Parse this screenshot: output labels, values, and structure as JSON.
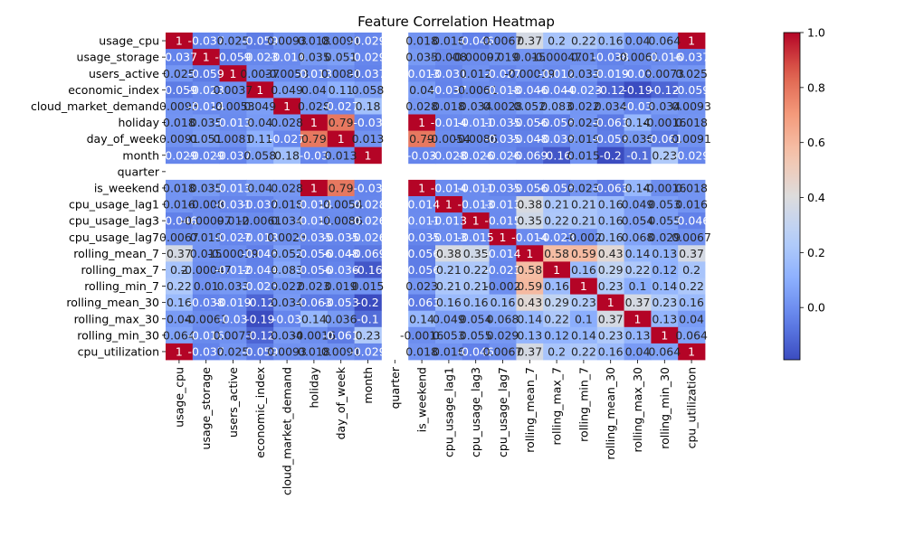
{
  "chart_data": {
    "type": "heatmap",
    "title": "Feature Correlation Heatmap",
    "colormap": "coolwarm",
    "colorbar": {
      "min": -0.19,
      "max": 1.0,
      "ticks": [
        0.0,
        0.2,
        0.4,
        0.6,
        0.8,
        1.0
      ]
    },
    "labels": [
      "usage_cpu",
      "usage_storage",
      "users_active",
      "economic_index",
      "cloud_market_demand",
      "holiday",
      "day_of_week",
      "month",
      "quarter",
      "is_weekend",
      "cpu_usage_lag1",
      "cpu_usage_lag3",
      "cpu_usage_lag7",
      "rolling_mean_7",
      "rolling_max_7",
      "rolling_min_7",
      "rolling_mean_30",
      "rolling_max_30",
      "rolling_min_30",
      "cpu_utilization"
    ],
    "matrix": [
      [
        1,
        -0.037,
        0.025,
        -0.059,
        0.0093,
        0.018,
        0.0091,
        -0.029,
        null,
        0.018,
        0.016,
        -0.046,
        0.0067,
        0.37,
        0.2,
        0.22,
        0.16,
        0.04,
        0.064,
        1
      ],
      [
        -0.037,
        1,
        -0.059,
        -0.023,
        -0.014,
        0.035,
        0.051,
        -0.029,
        null,
        0.035,
        -0.008,
        -0.00097,
        0.019,
        0.015,
        -0.00047,
        0.01,
        -0.038,
        -0.0061,
        -0.016,
        -0.037
      ],
      [
        0.025,
        -0.059,
        1,
        0.0037,
        -0.0053,
        -0.013,
        0.0081,
        -0.037,
        null,
        -0.013,
        -0.031,
        0.012,
        -0.027,
        -0.00019,
        -0.012,
        0.033,
        -0.019,
        -0.03,
        0.0073,
        0.025
      ],
      [
        -0.059,
        -0.023,
        0.0037,
        1,
        0.049,
        0.04,
        0.11,
        0.058,
        null,
        0.04,
        -0.037,
        -0.0061,
        -0.018,
        -0.046,
        -0.044,
        -0.023,
        -0.12,
        -0.19,
        -0.12,
        -0.059
      ],
      [
        0.0093,
        -0.014,
        -0.0053,
        0.049,
        1,
        0.028,
        -0.027,
        0.18,
        null,
        0.028,
        0.018,
        0.034,
        0.0028,
        0.052,
        0.083,
        0.022,
        0.034,
        -0.03,
        0.034,
        0.0093
      ],
      [
        0.018,
        0.035,
        -0.013,
        0.04,
        0.028,
        1,
        0.79,
        -0.03,
        null,
        1,
        -0.014,
        -0.011,
        -0.035,
        -0.056,
        -0.056,
        0.023,
        -0.063,
        0.14,
        -0.0016,
        0.018
      ],
      [
        0.0091,
        0.051,
        0.0081,
        0.11,
        -0.027,
        0.79,
        1,
        0.013,
        null,
        0.79,
        -0.0054,
        -0.0086,
        -0.035,
        -0.048,
        -0.036,
        0.019,
        -0.053,
        0.036,
        -0.061,
        0.0091
      ],
      [
        -0.029,
        -0.029,
        -0.037,
        0.058,
        0.18,
        -0.03,
        0.013,
        1,
        null,
        -0.03,
        -0.028,
        -0.026,
        -0.026,
        -0.069,
        -0.16,
        0.015,
        -0.2,
        -0.1,
        0.23,
        -0.029
      ],
      [
        null,
        null,
        null,
        null,
        null,
        null,
        null,
        null,
        null,
        null,
        null,
        null,
        null,
        null,
        null,
        null,
        null,
        null,
        null,
        null
      ],
      [
        0.018,
        0.035,
        -0.013,
        0.04,
        0.028,
        1,
        0.79,
        -0.03,
        null,
        1,
        -0.014,
        -0.011,
        -0.035,
        -0.056,
        -0.056,
        0.023,
        -0.063,
        0.14,
        -0.0016,
        0.018
      ],
      [
        0.016,
        -0.008,
        -0.031,
        -0.037,
        0.018,
        -0.014,
        -0.0054,
        -0.028,
        null,
        -0.014,
        1,
        -0.013,
        -0.013,
        0.38,
        0.21,
        0.21,
        0.16,
        0.049,
        0.053,
        0.016
      ],
      [
        -0.046,
        -0.00097,
        0.012,
        -0.0061,
        0.034,
        -0.011,
        -0.0086,
        -0.026,
        null,
        -0.011,
        -0.013,
        1,
        -0.015,
        0.35,
        0.22,
        0.21,
        0.16,
        0.054,
        0.055,
        -0.046
      ],
      [
        0.0067,
        0.019,
        -0.027,
        -0.018,
        0.0028,
        -0.035,
        -0.035,
        -0.026,
        null,
        -0.035,
        -0.013,
        -0.015,
        1,
        -0.014,
        -0.023,
        -0.002,
        0.16,
        0.068,
        0.029,
        0.0067
      ],
      [
        0.37,
        0.015,
        -0.00019,
        -0.046,
        0.052,
        -0.056,
        -0.048,
        -0.069,
        null,
        -0.056,
        0.38,
        0.35,
        -0.014,
        1,
        0.58,
        0.59,
        0.43,
        0.14,
        0.13,
        0.37
      ],
      [
        0.2,
        -0.00047,
        -0.012,
        -0.044,
        0.083,
        -0.056,
        -0.036,
        -0.16,
        null,
        -0.056,
        0.21,
        0.22,
        -0.023,
        0.58,
        1,
        0.16,
        0.29,
        0.22,
        0.12,
        0.2
      ],
      [
        0.22,
        0.01,
        0.033,
        -0.023,
        0.022,
        0.023,
        0.019,
        0.015,
        null,
        0.023,
        0.21,
        0.21,
        -0.002,
        0.59,
        0.16,
        1,
        0.23,
        0.1,
        0.14,
        0.22
      ],
      [
        0.16,
        -0.038,
        -0.019,
        -0.12,
        0.034,
        -0.063,
        -0.053,
        -0.2,
        null,
        -0.063,
        0.16,
        0.16,
        0.16,
        0.43,
        0.29,
        0.23,
        1,
        0.37,
        0.23,
        0.16
      ],
      [
        0.04,
        -0.0061,
        -0.03,
        -0.19,
        -0.03,
        0.14,
        0.036,
        -0.1,
        null,
        0.14,
        0.049,
        0.054,
        0.068,
        0.14,
        0.22,
        0.1,
        0.37,
        1,
        0.13,
        0.04
      ],
      [
        0.064,
        -0.016,
        0.0073,
        -0.12,
        0.034,
        -0.0016,
        -0.061,
        0.23,
        null,
        -0.0016,
        0.053,
        0.055,
        0.029,
        0.13,
        0.12,
        0.14,
        0.23,
        0.13,
        1,
        0.064
      ],
      [
        1,
        -0.037,
        0.025,
        -0.059,
        0.0093,
        0.018,
        0.0091,
        -0.029,
        null,
        0.018,
        0.016,
        -0.046,
        0.0067,
        0.37,
        0.2,
        0.22,
        0.16,
        0.04,
        0.064,
        1
      ]
    ],
    "annotations": [
      [
        "1",
        "-0.037",
        "0.025",
        "-0.059",
        "0.0093",
        "0.018",
        "0.0091",
        "-0.029",
        "",
        "0.018",
        "0.016",
        "-0.046",
        "0.0067",
        "0.37",
        "0.2",
        "0.22",
        "0.16",
        "0.04",
        "0.064",
        "1"
      ],
      [
        "-0.037",
        "1",
        "-0.059",
        "-0.023",
        "-0.014",
        "0.035",
        "0.051",
        "-0.029",
        "",
        "0.035",
        "-0.008",
        "-0.00097",
        "0.019",
        "0.015",
        "-0.00047",
        "0.01",
        "-0.038",
        "-0.0061",
        "-0.016",
        "-0.037"
      ],
      [
        "0.025",
        "-0.059",
        "1",
        "0.0037",
        "-0.0053",
        "-0.013",
        "0.0081",
        "-0.037",
        "",
        "-0.013",
        "-0.031",
        "0.012",
        "-0.027",
        "-0.00019",
        "-0.012",
        "0.033",
        "-0.019",
        "-0.03",
        "0.0073",
        "0.025"
      ],
      [
        "-0.059",
        "-0.023",
        "0.0037",
        "1",
        "0.049",
        "0.04",
        "0.11",
        "0.058",
        "",
        "0.04",
        "-0.037",
        "-0.0061",
        "-0.018",
        "-0.046",
        "-0.044",
        "-0.023",
        "-0.12",
        "-0.19",
        "-0.12",
        "-0.059"
      ],
      [
        "0.0093",
        "-0.014",
        "-0.0053",
        "0.049",
        "1",
        "0.028",
        "-0.027",
        "0.18",
        "",
        "0.028",
        "0.018",
        "0.034",
        "0.0028",
        "0.052",
        "0.083",
        "0.022",
        "0.034",
        "-0.03",
        "0.034",
        "0.0093"
      ],
      [
        "0.018",
        "0.035",
        "-0.013",
        "0.04",
        "0.028",
        "1",
        "0.79",
        "-0.03",
        "",
        "1",
        "-0.014",
        "-0.011",
        "-0.035",
        "-0.056",
        "-0.056",
        "0.023",
        "-0.063",
        "0.14",
        "-0.0016",
        "0.018"
      ],
      [
        "0.0091",
        "0.051",
        "0.0081",
        "0.11",
        "-0.027",
        "0.79",
        "1",
        "0.013",
        "",
        "0.79",
        "-0.0054",
        "-0.0086",
        "-0.035",
        "-0.048",
        "-0.036",
        "0.019",
        "-0.053",
        "0.036",
        "-0.061",
        "0.0091"
      ],
      [
        "-0.029",
        "-0.029",
        "-0.037",
        "0.058",
        "0.18",
        "-0.03",
        "0.013",
        "1",
        "",
        "-0.03",
        "-0.028",
        "-0.026",
        "-0.026",
        "-0.069",
        "-0.16",
        "0.015",
        "-0.2",
        "-0.1",
        "0.23",
        "-0.029"
      ],
      [
        "",
        "",
        "",
        "",
        "",
        "",
        "",
        "",
        "",
        "",
        "",
        "",
        "",
        "",
        "",
        "",
        "",
        "",
        "",
        ""
      ],
      [
        "0.018",
        "0.035",
        "-0.013",
        "0.04",
        "0.028",
        "1",
        "0.79",
        "-0.03",
        "",
        "1",
        "-0.014",
        "-0.011",
        "-0.035",
        "-0.056",
        "-0.056",
        "0.023",
        "-0.063",
        "0.14",
        "-0.0016",
        "0.018"
      ],
      [
        "0.016",
        "-0.008",
        "-0.031",
        "-0.037",
        "0.018",
        "-0.014",
        "-0.0054",
        "-0.028",
        "",
        "-0.014",
        "1",
        "-0.013",
        "-0.013",
        "0.38",
        "0.21",
        "0.21",
        "0.16",
        "0.049",
        "0.053",
        "0.016"
      ],
      [
        "-0.046",
        "-0.00097",
        "0.012",
        "-0.0061",
        "0.034",
        "-0.011",
        "-0.0086",
        "-0.026",
        "",
        "-0.011",
        "-0.013",
        "1",
        "-0.015",
        "0.35",
        "0.22",
        "0.21",
        "0.16",
        "0.054",
        "0.055",
        "-0.046"
      ],
      [
        "0.0067",
        "0.019",
        "-0.027",
        "-0.018",
        "0.0028",
        "-0.035",
        "-0.035",
        "-0.026",
        "",
        "-0.035",
        "-0.013",
        "-0.015",
        "1",
        "-0.014",
        "-0.023",
        "-0.002",
        "0.16",
        "0.068",
        "0.029",
        "0.0067"
      ],
      [
        "0.37",
        "0.015",
        "-0.00019",
        "-0.046",
        "0.052",
        "-0.056",
        "-0.048",
        "-0.069",
        "",
        "-0.056",
        "0.38",
        "0.35",
        "-0.014",
        "1",
        "0.58",
        "0.59",
        "0.43",
        "0.14",
        "0.13",
        "0.37"
      ],
      [
        "0.2",
        "-0.00047",
        "-0.012",
        "-0.044",
        "0.083",
        "-0.056",
        "-0.036",
        "-0.16",
        "",
        "-0.056",
        "0.21",
        "0.22",
        "-0.023",
        "0.58",
        "1",
        "0.16",
        "0.29",
        "0.22",
        "0.12",
        "0.2"
      ],
      [
        "0.22",
        "0.01",
        "0.033",
        "-0.023",
        "0.022",
        "0.023",
        "0.019",
        "0.015",
        "",
        "0.023",
        "0.21",
        "0.21",
        "-0.002",
        "0.59",
        "0.16",
        "1",
        "0.23",
        "0.1",
        "0.14",
        "0.22"
      ],
      [
        "0.16",
        "-0.038",
        "-0.019",
        "-0.12",
        "0.034",
        "-0.063",
        "-0.053",
        "-0.2",
        "",
        "-0.063",
        "0.16",
        "0.16",
        "0.16",
        "0.43",
        "0.29",
        "0.23",
        "1",
        "0.37",
        "0.23",
        "0.16"
      ],
      [
        "0.04",
        "-0.0061",
        "-0.03",
        "-0.19",
        "-0.03",
        "0.14",
        "0.036",
        "-0.1",
        "",
        "0.14",
        "0.049",
        "0.054",
        "0.068",
        "0.14",
        "0.22",
        "0.1",
        "0.37",
        "1",
        "0.13",
        "0.04"
      ],
      [
        "0.064",
        "-0.016",
        "0.0073",
        "-0.12",
        "0.034",
        "-0.0016",
        "-0.061",
        "0.23",
        "",
        "-0.0016",
        "0.053",
        "0.055",
        "0.029",
        "0.13",
        "0.12",
        "0.14",
        "0.23",
        "0.13",
        "1",
        "0.064"
      ],
      [
        "1",
        "-0.037",
        "0.025",
        "-0.059",
        "0.0093",
        "0.018",
        "0.0091",
        "-0.029",
        "",
        "0.018",
        "0.016",
        "-0.046",
        "0.0067",
        "0.37",
        "0.2",
        "0.22",
        "0.16",
        "0.04",
        "0.064",
        "1"
      ]
    ]
  }
}
